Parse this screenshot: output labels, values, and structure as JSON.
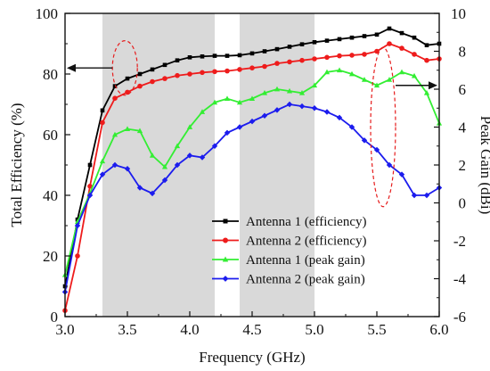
{
  "chart_data": {
    "type": "line",
    "title": "",
    "xlabel": "Frequency (GHz)",
    "ylabel_left": "Total Efficiency (%)",
    "ylabel_right": "Peak Gain (dBi)",
    "xlim": [
      3.0,
      6.0
    ],
    "ylim_left": [
      0,
      100
    ],
    "ylim_right": [
      -6,
      10
    ],
    "x_ticks": [
      "3.0",
      "3.5",
      "4.0",
      "4.5",
      "5.0",
      "5.5",
      "6.0"
    ],
    "x_tick_values": [
      3.0,
      3.5,
      4.0,
      4.5,
      5.0,
      5.5,
      6.0
    ],
    "y_left_ticks": [
      "0",
      "20",
      "40",
      "60",
      "80",
      "100"
    ],
    "y_left_tick_values": [
      0,
      20,
      40,
      60,
      80,
      100
    ],
    "y_right_ticks": [
      "-6",
      "-4",
      "-2",
      "0",
      "2",
      "4",
      "6",
      "8",
      "10"
    ],
    "y_right_tick_values": [
      -6,
      -4,
      -2,
      0,
      2,
      4,
      6,
      8,
      10
    ],
    "shaded_bands": [
      [
        3.3,
        4.2
      ],
      [
        4.4,
        5.0
      ]
    ],
    "grid": false,
    "legend_position": "bottom-right",
    "x": [
      3.0,
      3.1,
      3.2,
      3.3,
      3.4,
      3.5,
      3.6,
      3.7,
      3.8,
      3.9,
      4.0,
      4.1,
      4.2,
      4.3,
      4.4,
      4.5,
      4.6,
      4.7,
      4.8,
      4.9,
      5.0,
      5.1,
      5.2,
      5.3,
      5.4,
      5.5,
      5.6,
      5.7,
      5.8,
      5.9,
      6.0
    ],
    "series": [
      {
        "name": "Antenna 1 (efficiency)",
        "axis": "left",
        "color": "#000000",
        "values": [
          10,
          32,
          50,
          68,
          76,
          78.5,
          80,
          81.5,
          83,
          84.5,
          85.5,
          85.8,
          86,
          86,
          86.2,
          86.8,
          87.5,
          88.2,
          89,
          89.8,
          90.5,
          91,
          91.5,
          92,
          92.5,
          93,
          95,
          93.5,
          92,
          89.5,
          90
        ]
      },
      {
        "name": "Antenna 2 (efficiency)",
        "axis": "left",
        "color": "#ee1c1c",
        "values": [
          2,
          20,
          43,
          64,
          72,
          74,
          76,
          77.5,
          78.5,
          79.5,
          80,
          80.5,
          80.8,
          81,
          81.5,
          82,
          82.5,
          83.5,
          84,
          84.5,
          85,
          85.5,
          86,
          86.2,
          86.5,
          87.5,
          90,
          88.5,
          86.5,
          84.5,
          85
        ]
      },
      {
        "name": "Antenna 1 (peak gain)",
        "axis": "right",
        "color": "#33ee33",
        "values": [
          -3.8,
          -1.0,
          0.5,
          2.2,
          3.6,
          3.9,
          3.8,
          2.5,
          1.9,
          3.0,
          4.0,
          4.8,
          5.3,
          5.5,
          5.3,
          5.5,
          5.8,
          6.0,
          5.9,
          5.8,
          6.2,
          6.9,
          7.0,
          6.8,
          6.5,
          6.2,
          6.5,
          6.9,
          6.7,
          5.8,
          4.2
        ]
      },
      {
        "name": "Antenna 2 (peak gain)",
        "axis": "right",
        "color": "#1c1cee",
        "values": [
          -4.7,
          -1.2,
          0.4,
          1.5,
          2.0,
          1.8,
          0.8,
          0.5,
          1.2,
          2.0,
          2.5,
          2.4,
          3.0,
          3.7,
          4.0,
          4.3,
          4.6,
          4.9,
          5.2,
          5.1,
          5.0,
          4.8,
          4.5,
          4.0,
          3.3,
          2.8,
          2.0,
          1.5,
          0.4,
          0.4,
          0.8
        ]
      }
    ],
    "annotations": [
      {
        "type": "ellipse",
        "center": [
          3.48,
          82
        ],
        "rx_data": 0.1,
        "ry_data": 9,
        "axis": "left",
        "arrow_to": [
          3.0,
          82
        ]
      },
      {
        "type": "ellipse",
        "center": [
          5.55,
          4.0
        ],
        "rx_data": 0.1,
        "ry_data": 4.2,
        "axis": "right",
        "arrow_to": [
          6.0,
          6.2
        ]
      }
    ]
  }
}
